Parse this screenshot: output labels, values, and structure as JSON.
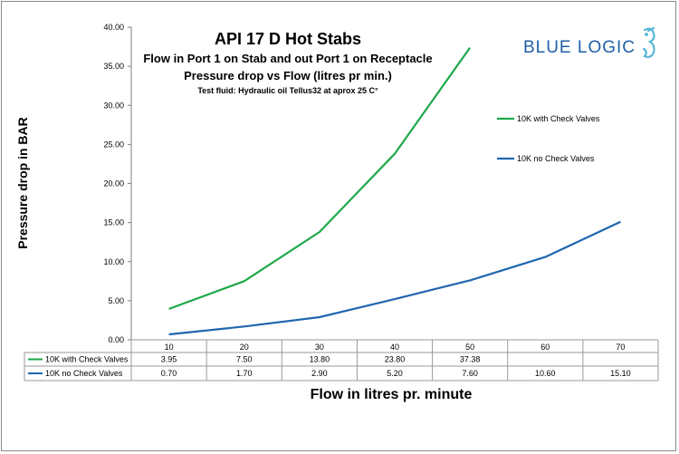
{
  "chart_data": {
    "type": "line",
    "title": "API 17 D Hot Stabs",
    "subtitle_lines": [
      "Flow in Port 1 on Stab and out Port 1 on Receptacle",
      "Pressure drop  vs Flow (litres pr min.)"
    ],
    "note": "Test fluid: Hydraulic oil Tellus32 at aprox 25 C°",
    "xlabel": "Flow in litres pr. minute",
    "ylabel": "Pressure drop in BAR",
    "ylim": [
      0,
      40
    ],
    "ytick_step": 5,
    "y_tick_labels": [
      "0.00",
      "5.00",
      "10.00",
      "15.00",
      "20.00",
      "25.00",
      "30.00",
      "35.00",
      "40.00"
    ],
    "categories": [
      "10",
      "20",
      "30",
      "40",
      "50",
      "60",
      "70"
    ],
    "series": [
      {
        "name": "10K with Check Valves",
        "color": "#1ea84a",
        "values": [
          3.95,
          7.5,
          13.8,
          23.8,
          37.38,
          null,
          null
        ],
        "labels": [
          "3.95",
          "7.50",
          "13.80",
          "23.80",
          "37.38",
          "",
          ""
        ]
      },
      {
        "name": "10K no Check Valves",
        "color": "#1f66b0",
        "values": [
          0.7,
          1.7,
          2.9,
          5.2,
          7.6,
          10.6,
          15.1
        ],
        "labels": [
          "0.70",
          "1.70",
          "2.90",
          "5.20",
          "7.60",
          "10.60",
          "15.10"
        ]
      }
    ],
    "legend_position": "right",
    "grid": false,
    "data_table": true
  },
  "logo": {
    "text": "BLUE LOGIC",
    "color": "#1f5fa8",
    "icon": "seahorse-icon"
  }
}
